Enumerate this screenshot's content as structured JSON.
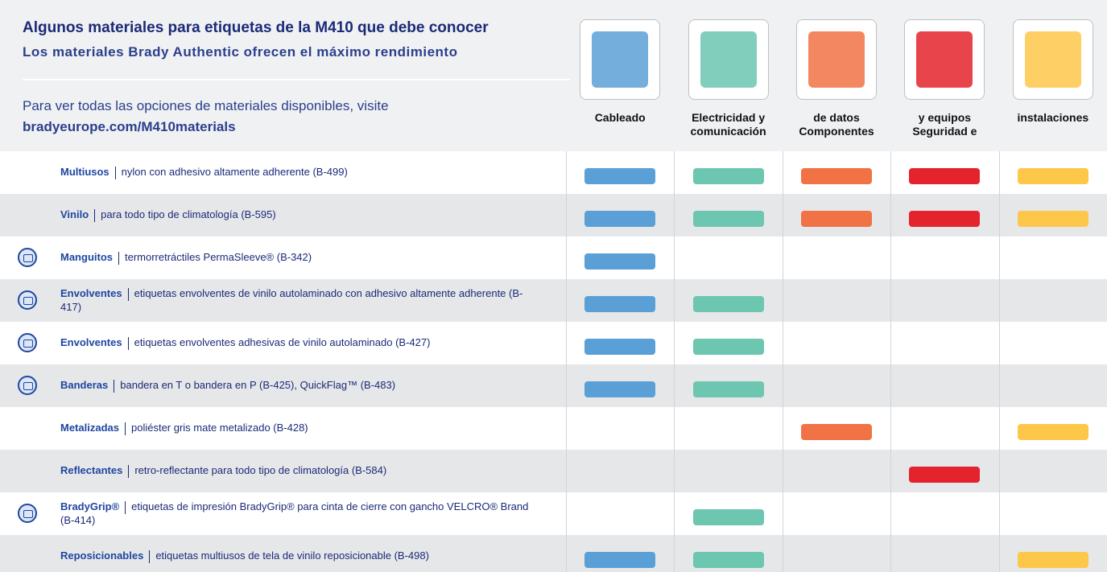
{
  "header": {
    "title": "Algunos materiales para etiquetas de la M410 que debe conocer",
    "subtitle": "Los materiales Brady Authentic ofrecen el máximo rendimiento",
    "note": "Para ver todas las opciones de materiales disponibles, visite",
    "link": "bradyeurope.com/M410materials"
  },
  "columns": [
    {
      "lines": [
        "Cableado"
      ],
      "color": "#5aa0d6"
    },
    {
      "lines": [
        "Electricidad y",
        "comunicación"
      ],
      "color": "#6cc6b0"
    },
    {
      "lines": [
        "de datos",
        "Componentes"
      ],
      "color": "#f07245"
    },
    {
      "lines": [
        "y equipos",
        "Seguridad e"
      ],
      "color": "#e4232d"
    },
    {
      "lines": [
        "instalaciones"
      ],
      "color": "#fdc74a"
    }
  ],
  "rows": [
    {
      "name": "Multiusos",
      "desc": "nylon con adhesivo altamente adherente (B-499)",
      "icon": false,
      "marks": [
        true,
        true,
        true,
        true,
        true
      ]
    },
    {
      "name": "Vinilo",
      "desc": "para todo tipo de climatología (B-595)",
      "icon": false,
      "marks": [
        true,
        true,
        true,
        true,
        true
      ]
    },
    {
      "name": "Manguitos",
      "desc": "termorretráctiles PermaSleeve® (B-342)",
      "icon": true,
      "marks": [
        true,
        false,
        false,
        false,
        false
      ]
    },
    {
      "name": "Envolventes",
      "desc": "etiquetas envolventes de vinilo autolaminado con adhesivo altamente adherente (B-417)",
      "icon": true,
      "marks": [
        true,
        true,
        false,
        false,
        false
      ]
    },
    {
      "name": "Envolventes",
      "desc": "etiquetas envolventes adhesivas de vinilo autolaminado (B-427)",
      "icon": true,
      "marks": [
        true,
        true,
        false,
        false,
        false
      ]
    },
    {
      "name": "Banderas",
      "desc": "bandera en T o bandera en P (B-425), QuickFlag™ (B-483)",
      "icon": true,
      "marks": [
        true,
        true,
        false,
        false,
        false
      ]
    },
    {
      "name": "Metalizadas",
      "desc": "poliéster gris mate metalizado (B-428)",
      "icon": false,
      "marks": [
        false,
        false,
        true,
        false,
        true
      ]
    },
    {
      "name": "Reflectantes",
      "desc": "retro-reflectante para todo tipo de climatología (B-584)",
      "icon": false,
      "marks": [
        false,
        false,
        false,
        true,
        false
      ]
    },
    {
      "name": "BradyGrip®",
      "desc": "etiquetas de impresión BradyGrip® para cinta de cierre con gancho VELCRO® Brand (B-414)",
      "icon": true,
      "marks": [
        false,
        true,
        false,
        false,
        false
      ]
    },
    {
      "name": "Reposicionables",
      "desc": "etiquetas multiusos de tela de vinilo reposicionable (B-498)",
      "icon": false,
      "marks": [
        true,
        true,
        false,
        false,
        true
      ]
    }
  ]
}
